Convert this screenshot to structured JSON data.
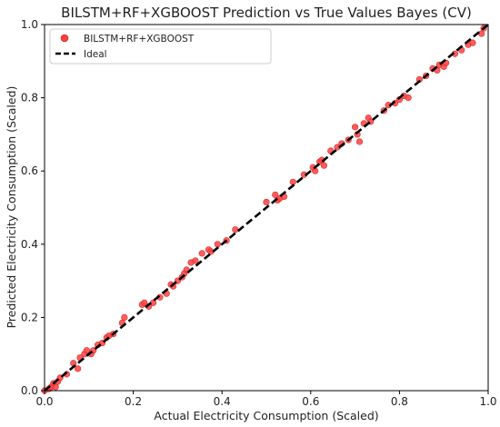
{
  "chart_data": {
    "type": "scatter",
    "title": "BILSTM+RF+XGBOOST Prediction vs True Values Bayes (CV)",
    "xlabel": "Actual Electricity Consumption (Scaled)",
    "ylabel": "Predicted Electricity Consumption (Scaled)",
    "xlim": [
      0.0,
      1.0
    ],
    "ylim": [
      0.0,
      1.0
    ],
    "xticks": [
      "0.0",
      "0.2",
      "0.4",
      "0.6",
      "0.8",
      "1.0"
    ],
    "yticks": [
      "0.0",
      "0.2",
      "0.4",
      "0.6",
      "0.8",
      "1.0"
    ],
    "grid": false,
    "legend_position": "top-left",
    "colors": {
      "points": "#ff4040",
      "ideal": "#000000"
    },
    "series": [
      {
        "name": "BILSTM+RF+XGBOOST",
        "kind": "scatter",
        "x": [
          0.0,
          0.01,
          0.015,
          0.02,
          0.025,
          0.03,
          0.035,
          0.05,
          0.065,
          0.075,
          0.08,
          0.09,
          0.095,
          0.105,
          0.11,
          0.12,
          0.13,
          0.14,
          0.145,
          0.155,
          0.175,
          0.18,
          0.22,
          0.225,
          0.235,
          0.245,
          0.26,
          0.275,
          0.285,
          0.29,
          0.3,
          0.31,
          0.315,
          0.32,
          0.33,
          0.34,
          0.355,
          0.37,
          0.375,
          0.39,
          0.41,
          0.43,
          0.5,
          0.52,
          0.525,
          0.53,
          0.54,
          0.56,
          0.585,
          0.605,
          0.61,
          0.62,
          0.625,
          0.63,
          0.645,
          0.66,
          0.67,
          0.685,
          0.7,
          0.705,
          0.71,
          0.72,
          0.73,
          0.735,
          0.765,
          0.775,
          0.79,
          0.8,
          0.81,
          0.82,
          0.845,
          0.86,
          0.875,
          0.885,
          0.89,
          0.9,
          0.905,
          0.925,
          0.94,
          0.955,
          0.965,
          0.985,
          0.99
        ],
        "y": [
          0.0,
          0.005,
          0.01,
          0.02,
          0.01,
          0.025,
          0.035,
          0.045,
          0.075,
          0.06,
          0.09,
          0.1,
          0.11,
          0.1,
          0.11,
          0.125,
          0.13,
          0.145,
          0.15,
          0.155,
          0.185,
          0.2,
          0.235,
          0.24,
          0.23,
          0.24,
          0.255,
          0.265,
          0.29,
          0.285,
          0.3,
          0.31,
          0.32,
          0.33,
          0.35,
          0.355,
          0.375,
          0.385,
          0.38,
          0.4,
          0.41,
          0.44,
          0.515,
          0.535,
          0.52,
          0.525,
          0.53,
          0.57,
          0.59,
          0.61,
          0.6,
          0.625,
          0.63,
          0.615,
          0.655,
          0.665,
          0.675,
          0.685,
          0.72,
          0.7,
          0.68,
          0.73,
          0.745,
          0.735,
          0.765,
          0.78,
          0.785,
          0.795,
          0.805,
          0.8,
          0.85,
          0.86,
          0.88,
          0.875,
          0.89,
          0.885,
          0.895,
          0.92,
          0.93,
          0.945,
          0.95,
          0.975,
          0.99
        ]
      },
      {
        "name": "Ideal",
        "kind": "line",
        "x": [
          0.0,
          1.0
        ],
        "y": [
          0.0,
          1.0
        ]
      }
    ]
  }
}
